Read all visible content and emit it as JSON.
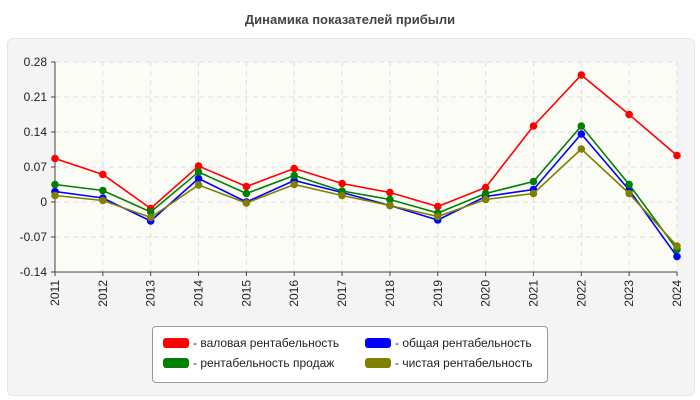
{
  "chart_data": {
    "type": "line",
    "title": "Динамика показателей прибыли",
    "categories": [
      "2011",
      "2012",
      "2013",
      "2014",
      "2015",
      "2016",
      "2017",
      "2018",
      "2019",
      "2020",
      "2021",
      "2022",
      "2023",
      "2024"
    ],
    "ylim": [
      -0.14,
      0.28
    ],
    "yticks": [
      "0.28",
      "0.21",
      "0.14",
      "0.07",
      "0",
      "-0.07",
      "-0.14"
    ],
    "ytick_values": [
      0.28,
      0.21,
      0.14,
      0.07,
      0,
      -0.07,
      -0.14
    ],
    "grid": true,
    "legend_placement": "bottom",
    "series": [
      {
        "name": "- валовая рентабельность",
        "color": "#ff0000",
        "values": [
          0.087,
          0.055,
          -0.013,
          0.072,
          0.031,
          0.067,
          0.037,
          0.019,
          -0.009,
          0.029,
          0.152,
          0.254,
          0.175,
          0.093
        ]
      },
      {
        "name": "- общая рентабельность",
        "color": "#0000ff",
        "values": [
          0.021,
          0.008,
          -0.038,
          0.047,
          0.0,
          0.043,
          0.019,
          -0.007,
          -0.036,
          0.011,
          0.025,
          0.136,
          0.024,
          -0.109
        ]
      },
      {
        "name": "- рентабельность продаж",
        "color": "#008000",
        "values": [
          0.035,
          0.023,
          -0.02,
          0.06,
          0.017,
          0.053,
          0.022,
          0.005,
          -0.022,
          0.017,
          0.041,
          0.152,
          0.035,
          -0.095
        ]
      },
      {
        "name": "- чистая рентабельность",
        "color": "#808000",
        "values": [
          0.013,
          0.003,
          -0.031,
          0.034,
          -0.002,
          0.035,
          0.013,
          -0.007,
          -0.029,
          0.005,
          0.017,
          0.106,
          0.017,
          -0.088
        ]
      }
    ]
  }
}
